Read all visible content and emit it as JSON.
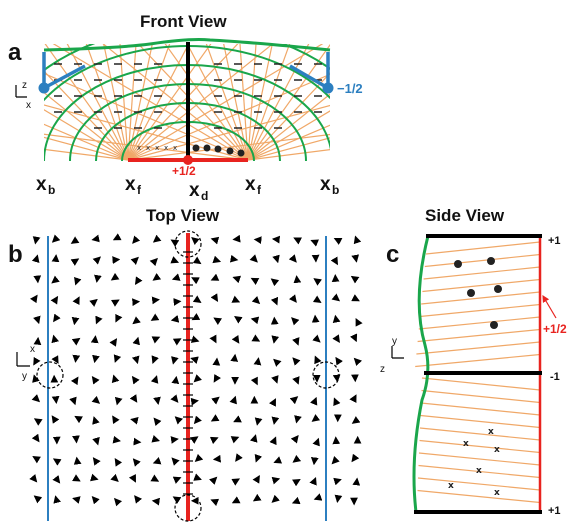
{
  "titles": {
    "front": "Front View",
    "top": "Top View",
    "side": "Side View"
  },
  "panels": {
    "a": "a",
    "b": "b",
    "c": "c"
  },
  "front": {
    "axis": {
      "up": "z",
      "right": "x"
    },
    "x_labels": [
      {
        "main": "x",
        "sub": "b"
      },
      {
        "main": "x",
        "sub": "f"
      },
      {
        "main": "x",
        "sub": "d"
      },
      {
        "main": "x",
        "sub": "f"
      },
      {
        "main": "x",
        "sub": "b"
      }
    ],
    "charge_blue": "−1/2",
    "charge_red": "+1/2"
  },
  "top": {
    "axis": {
      "up": "x",
      "right": "y"
    }
  },
  "side": {
    "axis": {
      "up": "y",
      "right": "z"
    },
    "right_labels": [
      "+1",
      "-1",
      "+1"
    ],
    "charge_red": "+1/2"
  },
  "colors": {
    "green": "#1aa64b",
    "orange": "#f0a868",
    "blue": "#2c7fc0",
    "red": "#e8231f",
    "black": "#000000"
  }
}
